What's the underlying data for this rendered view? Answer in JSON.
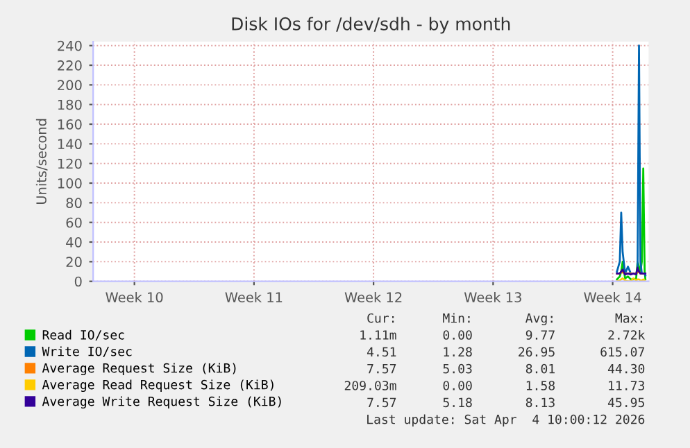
{
  "chart_data": {
    "type": "line",
    "title": "Disk IOs for /dev/sdh - by month",
    "ylabel": "Units/second",
    "x": [
      "2026-04-02T18:00",
      "2026-04-02T22:00",
      "2026-04-03T00:00",
      "2026-04-03T02:00",
      "2026-04-03T05:30",
      "2026-04-03T09:30",
      "2026-04-03T13:30",
      "2026-04-03T17:00",
      "2026-04-03T21:00",
      "2026-04-03T23:00",
      "2026-04-04T01:00",
      "2026-04-04T03:00",
      "2026-04-04T05:00",
      "2026-04-04T07:00",
      "2026-04-04T09:00",
      "2026-04-04T10:00"
    ],
    "xlim": [
      "2026-03-03T02:00",
      "2026-04-04T14:30"
    ],
    "xticks": [
      {
        "value": "2026-03-05T12:00",
        "label": "Week 10"
      },
      {
        "value": "2026-03-12T12:00",
        "label": "Week 11"
      },
      {
        "value": "2026-03-19T12:00",
        "label": "Week 12"
      },
      {
        "value": "2026-03-26T12:00",
        "label": "Week 13"
      },
      {
        "value": "2026-04-02T12:00",
        "label": "Week 14"
      }
    ],
    "ylim": [
      0,
      244
    ],
    "yticks": [
      0,
      20,
      40,
      60,
      80,
      100,
      120,
      140,
      160,
      180,
      200,
      220,
      240
    ],
    "grid": true,
    "legend": "bottom",
    "line_style": "solid",
    "series": [
      {
        "name": "Read IO/sec",
        "color": "#00cc00",
        "values": [
          2,
          5,
          10,
          20,
          3,
          5,
          2,
          2,
          3,
          20,
          15,
          10,
          20,
          115,
          10,
          2
        ]
      },
      {
        "name": "Write IO/sec",
        "color": "#0066b3",
        "values": [
          10,
          20,
          70,
          30,
          8,
          15,
          8,
          8,
          8,
          12,
          240,
          20,
          8,
          8,
          8,
          6
        ]
      },
      {
        "name": "Average Request Size (KiB)",
        "color": "#ff8000",
        "values": [
          8,
          8,
          10,
          9,
          8,
          8,
          8,
          8,
          8,
          9,
          10,
          8,
          8,
          8,
          null,
          null
        ]
      },
      {
        "name": "Average Read Request Size (KiB)",
        "color": "#ffcc00",
        "values": [
          0,
          1,
          2,
          3,
          1,
          0,
          0,
          3,
          1,
          2,
          2,
          1,
          1,
          2,
          1,
          0
        ]
      },
      {
        "name": "Average Write Request Size (KiB)",
        "color": "#330099",
        "values": [
          8,
          8,
          10,
          12,
          7,
          8,
          7,
          8,
          7,
          14,
          10,
          8,
          8,
          8,
          8,
          8
        ]
      }
    ],
    "annotations": [
      "Cur:",
      "Min:",
      "Avg:",
      "Max:",
      "1.11m",
      "0.00",
      "9.77",
      "2.72k",
      "4.51",
      "1.28",
      "26.95",
      "615.07",
      "7.57",
      "5.03",
      "8.01",
      "44.30",
      "209.03m",
      "0.00",
      "1.58",
      "11.73",
      "7.57",
      "5.18",
      "8.13",
      "45.95",
      "Last update: Sat Apr  4 10:00:12 2026"
    ]
  }
}
